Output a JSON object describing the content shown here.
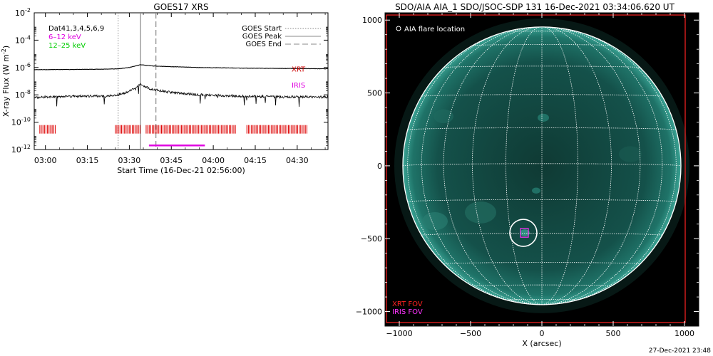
{
  "timestamp": "27-Dec-2021 23:48",
  "chart_data": [
    {
      "type": "line",
      "title": "GOES17 XRS",
      "xlabel": "Start Time (16-Dec-21 02:56:00)",
      "ylabel": "X-ray Flux (W m",
      "ylabel_sup": "-2",
      "ylabel_close": ")",
      "yscale": "log",
      "xlim": [
        "02:56:00",
        "04:41:00"
      ],
      "ylim": [
        1e-12,
        0.01
      ],
      "x_ticks": [
        "03:00",
        "03:15",
        "03:30",
        "03:45",
        "04:00",
        "04:15",
        "04:30"
      ],
      "y_ticks": [
        {
          "base": "10",
          "exp": "-12"
        },
        {
          "base": "10",
          "exp": "-10"
        },
        {
          "base": "10",
          "exp": "-8"
        },
        {
          "base": "10",
          "exp": "-6"
        },
        {
          "base": "10",
          "exp": "-4"
        },
        {
          "base": "10",
          "exp": "-2"
        }
      ],
      "legend_left": {
        "placement": "top-left",
        "entries": [
          {
            "label": "Dat41,3,4,5,6,9",
            "color": "#000000"
          },
          {
            "label": "6–12 keV",
            "color": "#e000e0"
          },
          {
            "label": "12–25 keV",
            "color": "#00cc00"
          }
        ]
      },
      "legend_right": {
        "placement": "top-right",
        "entries": [
          {
            "label": "GOES Start",
            "style": "dotted"
          },
          {
            "label": "GOES Peak",
            "style": "solid"
          },
          {
            "label": "GOES End",
            "style": "dashed"
          }
        ]
      },
      "markers": {
        "goes_start": "03:26:00",
        "goes_peak": "03:34:00",
        "goes_end": "03:39:30"
      },
      "series": [
        {
          "name": "",
          "color": "#000000",
          "x": [
            "02:56",
            "03:00",
            "03:10",
            "03:20",
            "03:26",
            "03:30",
            "03:34",
            "03:38",
            "03:45",
            "03:55",
            "04:10",
            "04:25",
            "04:41"
          ],
          "y": [
            7e-07,
            7e-07,
            7.2e-07,
            7.5e-07,
            8e-07,
            1e-06,
            1.6e-06,
            1.3e-06,
            1.15e-06,
            1e-06,
            9e-07,
            8.5e-07,
            8e-07
          ]
        },
        {
          "name": "",
          "color": "#000000",
          "x": [
            "02:56",
            "03:00",
            "03:10",
            "03:20",
            "03:26",
            "03:30",
            "03:34",
            "03:38",
            "03:45",
            "03:55",
            "04:10",
            "04:25",
            "04:41"
          ],
          "y": [
            6e-09,
            7e-09,
            8e-09,
            8e-09,
            1e-08,
            1.8e-08,
            6e-08,
            2.5e-08,
            1.5e-08,
            1e-08,
            8e-09,
            7e-09,
            7e-09
          ]
        }
      ],
      "annotations": [
        {
          "label": "XRT",
          "color": "#cc0000",
          "x": "04:28",
          "y": 5e-07
        },
        {
          "label": "IRIS",
          "color": "#e000e0",
          "x": "04:28",
          "y": 3.5e-08
        }
      ],
      "xrt_intervals": [
        [
          "02:58",
          "03:04"
        ],
        [
          "03:25",
          "03:34"
        ],
        [
          "03:36",
          "04:08"
        ],
        [
          "04:12",
          "04:34"
        ]
      ],
      "xrt_level": 3e-11,
      "iris_interval": [
        "03:37",
        "03:57"
      ],
      "iris_level": 2e-12
    },
    {
      "type": "image",
      "title": "SDO/AIA AIA_1 SDO/JSOC-SDP 131 16-Dec-2021 03:34:06.620 UT",
      "xlabel": "X (arcsec)",
      "ylabel": "",
      "xlim": [
        -1100,
        1100
      ],
      "ylim": [
        -1100,
        1050
      ],
      "x_ticks": [
        -1000,
        -500,
        0,
        500,
        1000
      ],
      "y_ticks": [
        -1000,
        -500,
        0,
        500,
        1000
      ],
      "solar_radius": 975,
      "legend": [
        {
          "label": "AIA flare location",
          "color": "#ffffff",
          "symbol": "circle",
          "placement": "top-left"
        },
        {
          "label": "XRT FOV",
          "color": "#ff2222",
          "placement": "bottom-left"
        },
        {
          "label": "IRIS FOV",
          "color": "#ff33ff",
          "placement": "bottom-left"
        }
      ],
      "flare_location": {
        "x": -130,
        "y": -460
      },
      "xrt_fov": {
        "x_range": [
          -1090,
          1005
        ],
        "y_range": [
          -1075,
          1035
        ]
      },
      "iris_fov": {
        "x_range": [
          -150,
          -95
        ],
        "y_range": [
          -490,
          -430
        ]
      }
    }
  ]
}
